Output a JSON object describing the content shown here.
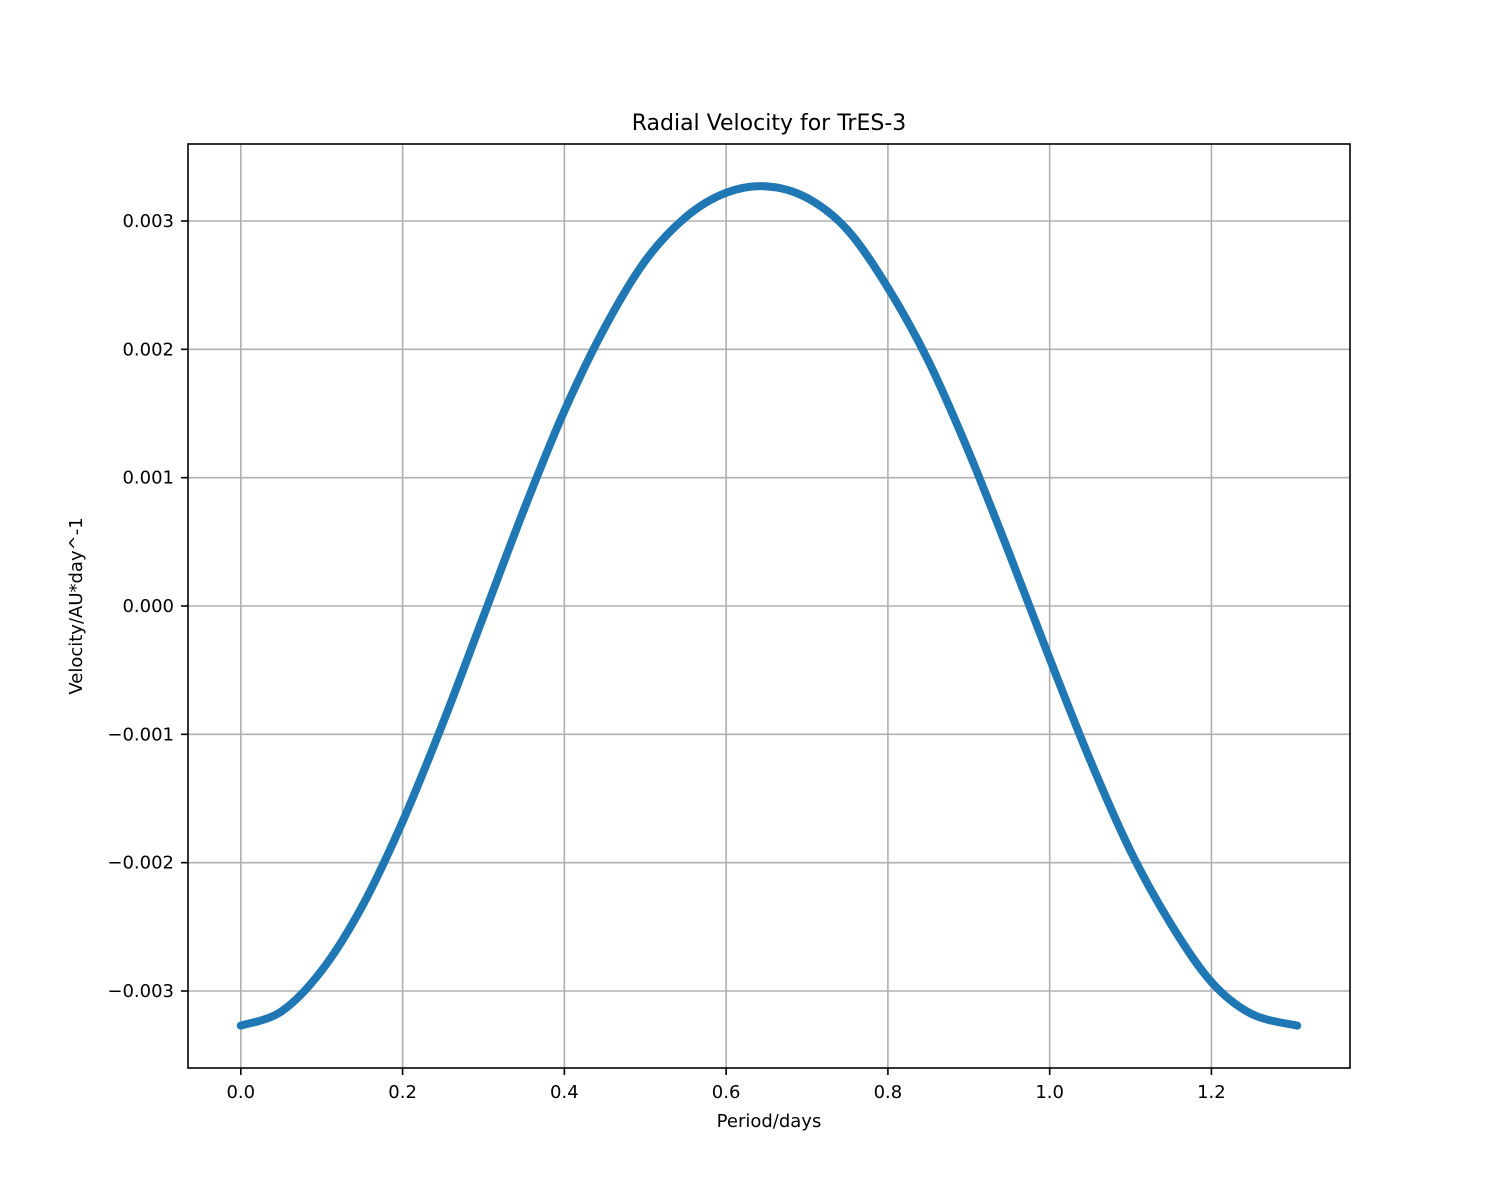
{
  "chart_data": {
    "type": "scatter",
    "title": "Radial Velocity for TrES-3",
    "xlabel": "Period/days",
    "ylabel": "Velocity/AU*day^-1",
    "xlim": [
      -0.0653,
      1.3713
    ],
    "ylim": [
      -0.0036,
      0.0036
    ],
    "xticks": [
      0.0,
      0.2,
      0.4,
      0.6,
      0.8,
      1.0,
      1.2
    ],
    "xtick_labels": [
      "0.0",
      "0.2",
      "0.4",
      "0.6",
      "0.8",
      "1.0",
      "1.2"
    ],
    "yticks": [
      -0.003,
      -0.002,
      -0.001,
      0.0,
      0.001,
      0.002,
      0.003
    ],
    "ytick_labels": [
      "−0.003",
      "−0.002",
      "−0.001",
      "0.000",
      "0.001",
      "0.002",
      "0.003"
    ],
    "grid": true,
    "series": [
      {
        "color": "#1f77b4",
        "x": [
          0.0,
          0.05,
          0.1,
          0.15,
          0.2,
          0.25,
          0.3,
          0.35,
          0.4,
          0.45,
          0.5,
          0.55,
          0.6,
          0.65,
          0.7,
          0.75,
          0.8,
          0.85,
          0.9,
          0.95,
          1.0,
          1.05,
          1.1,
          1.15,
          1.2,
          1.25,
          1.306
        ],
        "y": [
          -0.00327,
          -0.00316,
          -0.00284,
          -0.00234,
          -0.00168,
          -0.00091,
          -8e-05,
          0.00075,
          0.00152,
          0.00217,
          0.00269,
          0.00303,
          0.00322,
          0.00327,
          0.00318,
          0.00293,
          0.00248,
          0.00191,
          0.0012,
          0.00041,
          -0.00041,
          -0.0012,
          -0.00191,
          -0.00248,
          -0.00293,
          -0.00318,
          -0.00327
        ]
      }
    ]
  }
}
